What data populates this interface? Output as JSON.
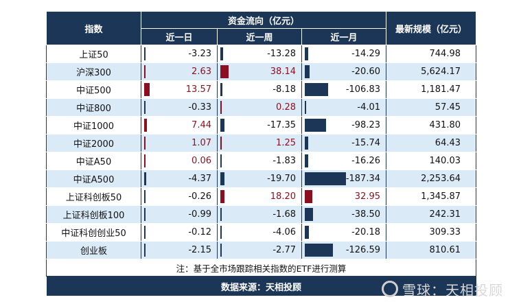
{
  "header": {
    "index": "指数",
    "flow_group": "资金流向（亿元）",
    "size": "最新规模（亿元）",
    "periods": [
      "近一日",
      "近一周",
      "近一月"
    ]
  },
  "rows": [
    {
      "name": "上证50",
      "day": "-3.23",
      "week": "-13.28",
      "month": "-14.29",
      "size": "744.98"
    },
    {
      "name": "沪深300",
      "day": "2.63",
      "week": "38.14",
      "month": "-20.60",
      "size": "5,624.17"
    },
    {
      "name": "中证500",
      "day": "13.57",
      "week": "-8.18",
      "month": "-106.83",
      "size": "1,181.47"
    },
    {
      "name": "中证800",
      "day": "-0.33",
      "week": "0.28",
      "month": "-4.01",
      "size": "57.45"
    },
    {
      "name": "中证1000",
      "day": "7.44",
      "week": "-17.35",
      "month": "-98.23",
      "size": "431.80"
    },
    {
      "name": "中证2000",
      "day": "1.07",
      "week": "1.25",
      "month": "-15.74",
      "size": "64.43"
    },
    {
      "name": "中证A50",
      "day": "0.06",
      "week": "-1.83",
      "month": "-16.26",
      "size": "140.03"
    },
    {
      "name": "中证A500",
      "day": "-4.37",
      "week": "-19.70",
      "month": "-187.34",
      "size": "2,253.64"
    },
    {
      "name": "上证科创板50",
      "day": "-0.26",
      "week": "18.20",
      "month": "32.95",
      "size": "1,345.87"
    },
    {
      "name": "上证科创板100",
      "day": "-0.99",
      "week": "-1.68",
      "month": "-38.50",
      "size": "242.31"
    },
    {
      "name": "中证科创创业50",
      "day": "-0.12",
      "week": "-4.06",
      "month": "-20.18",
      "size": "309.33"
    },
    {
      "name": "创业板",
      "day": "-2.15",
      "week": "-2.77",
      "month": "-126.59",
      "size": "810.61"
    }
  ],
  "note": "注：基于全市场跟踪相关指数的ETF进行测算",
  "source": "数据来源：天相投顾",
  "watermark": "雪球：天相投顾",
  "colors": {
    "header": "#1b3657",
    "positive": "#8b0f1e",
    "negative": "#1b3657",
    "stripe": "#dbeaf7"
  }
}
